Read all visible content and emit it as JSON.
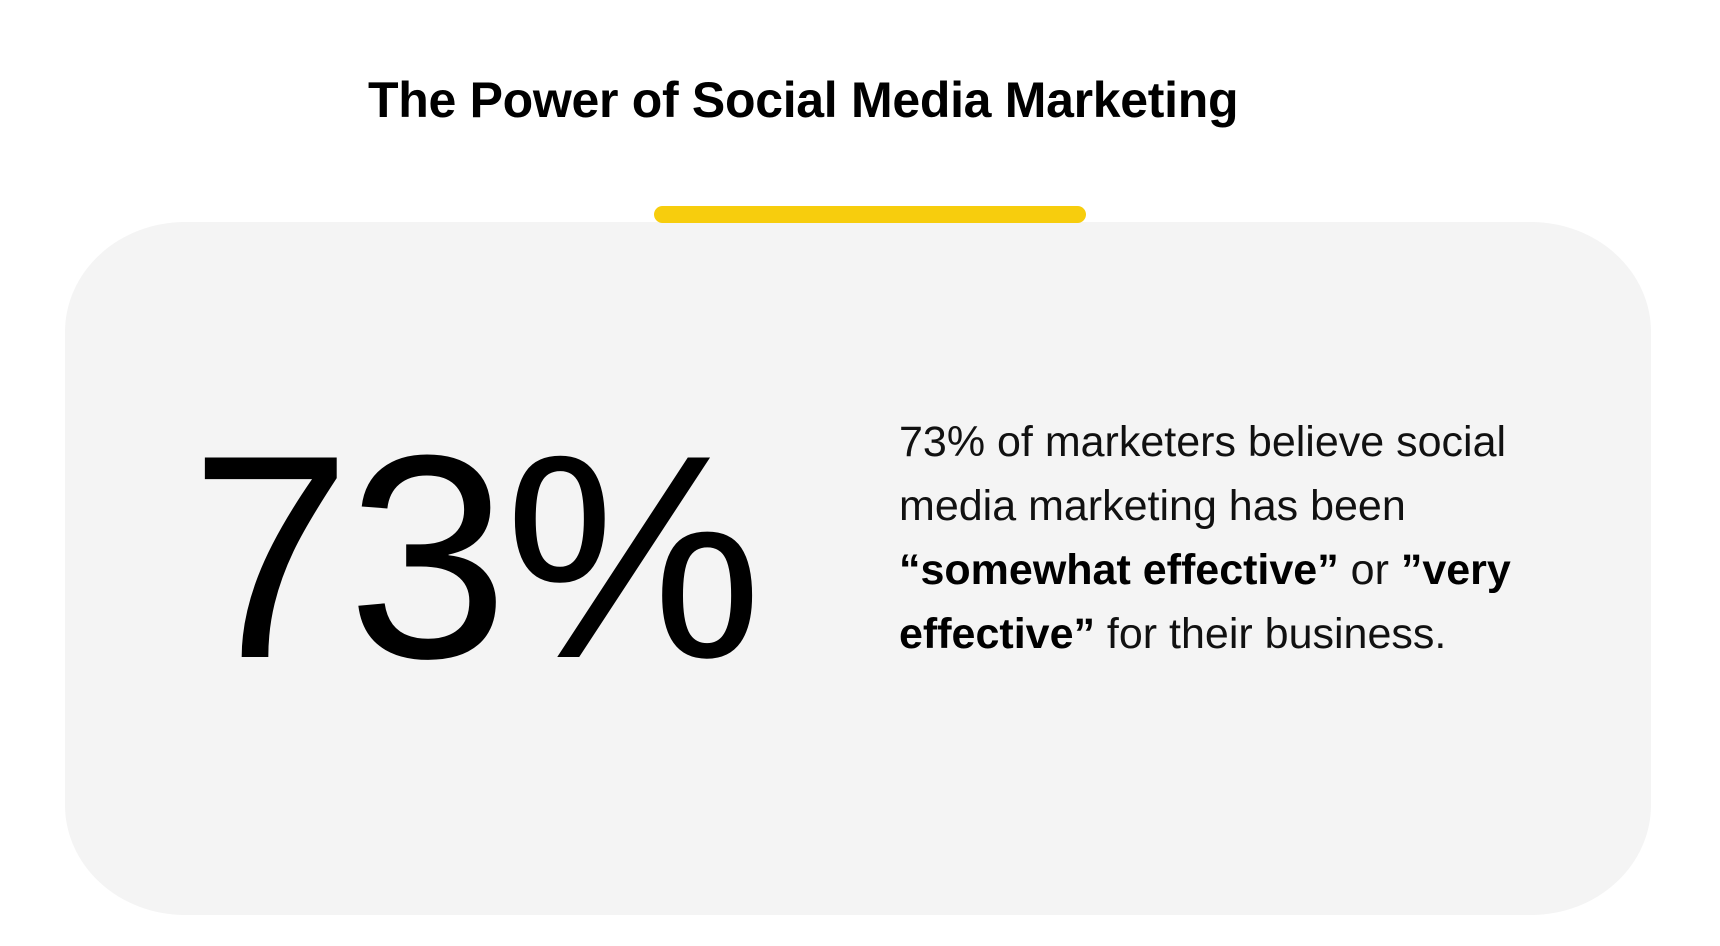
{
  "header": {
    "title": "The Power of Social Media Marketing"
  },
  "colors": {
    "accent": "#f7cd0d",
    "card_background": "#f4f4f4",
    "text": "#000000",
    "page_background": "#ffffff"
  },
  "stat": {
    "value": "73%",
    "description": {
      "part1": "73% of marketers believe social media marketing has been ",
      "bold1": "“somewhat effective”",
      "part2": " or ",
      "bold2": "”very effective”",
      "part3": " for their business."
    }
  }
}
